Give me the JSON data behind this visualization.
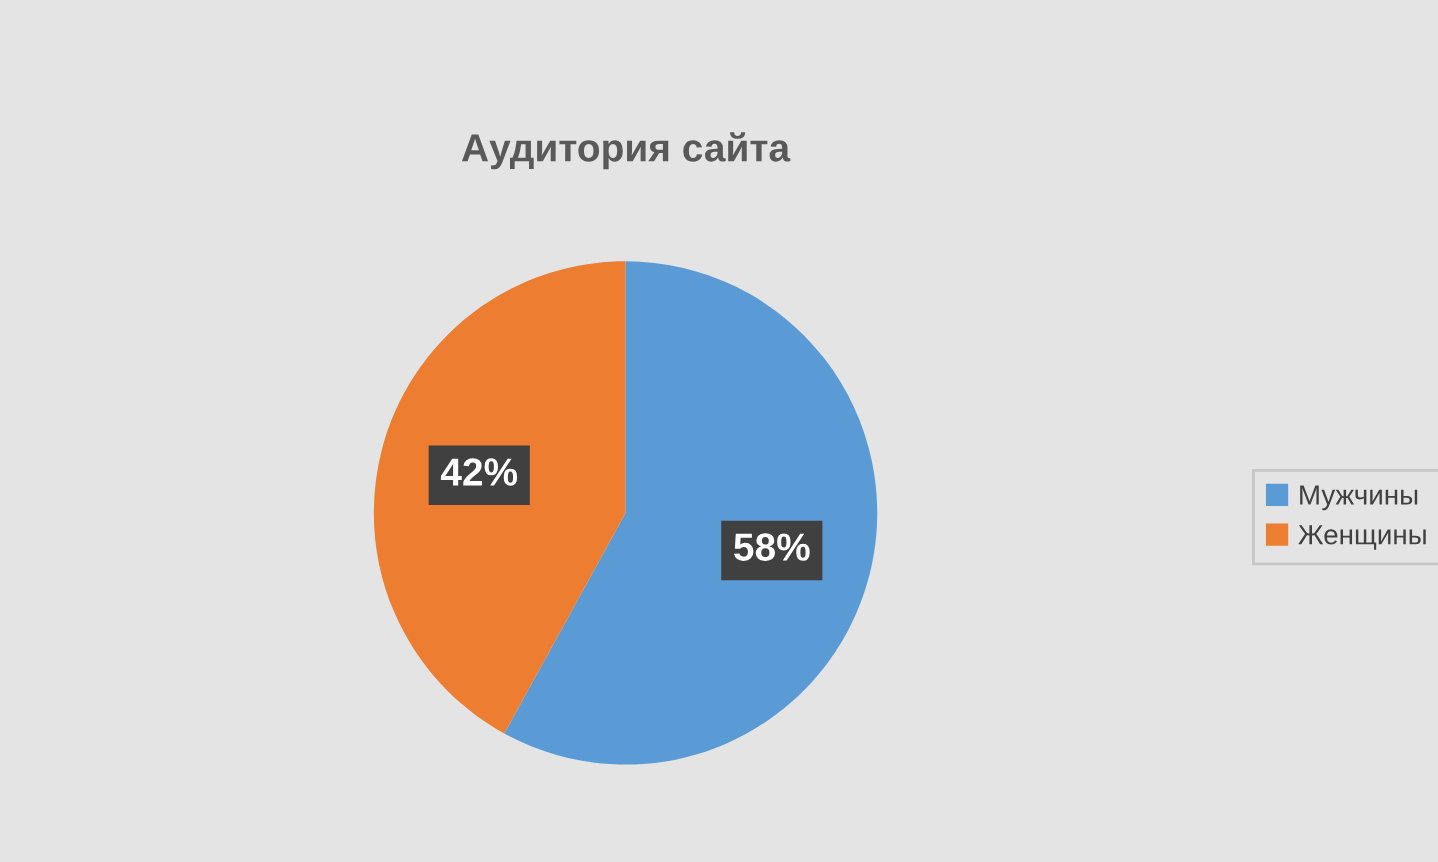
{
  "chart_data": {
    "type": "pie",
    "title": "Аудитория сайта",
    "categories": [
      "Мужчины",
      "Женщины"
    ],
    "values": [
      58,
      42
    ],
    "colors": [
      "#5b9bd5",
      "#ed7d31"
    ],
    "value_labels": [
      "58%",
      "42%"
    ],
    "legend": "right"
  }
}
